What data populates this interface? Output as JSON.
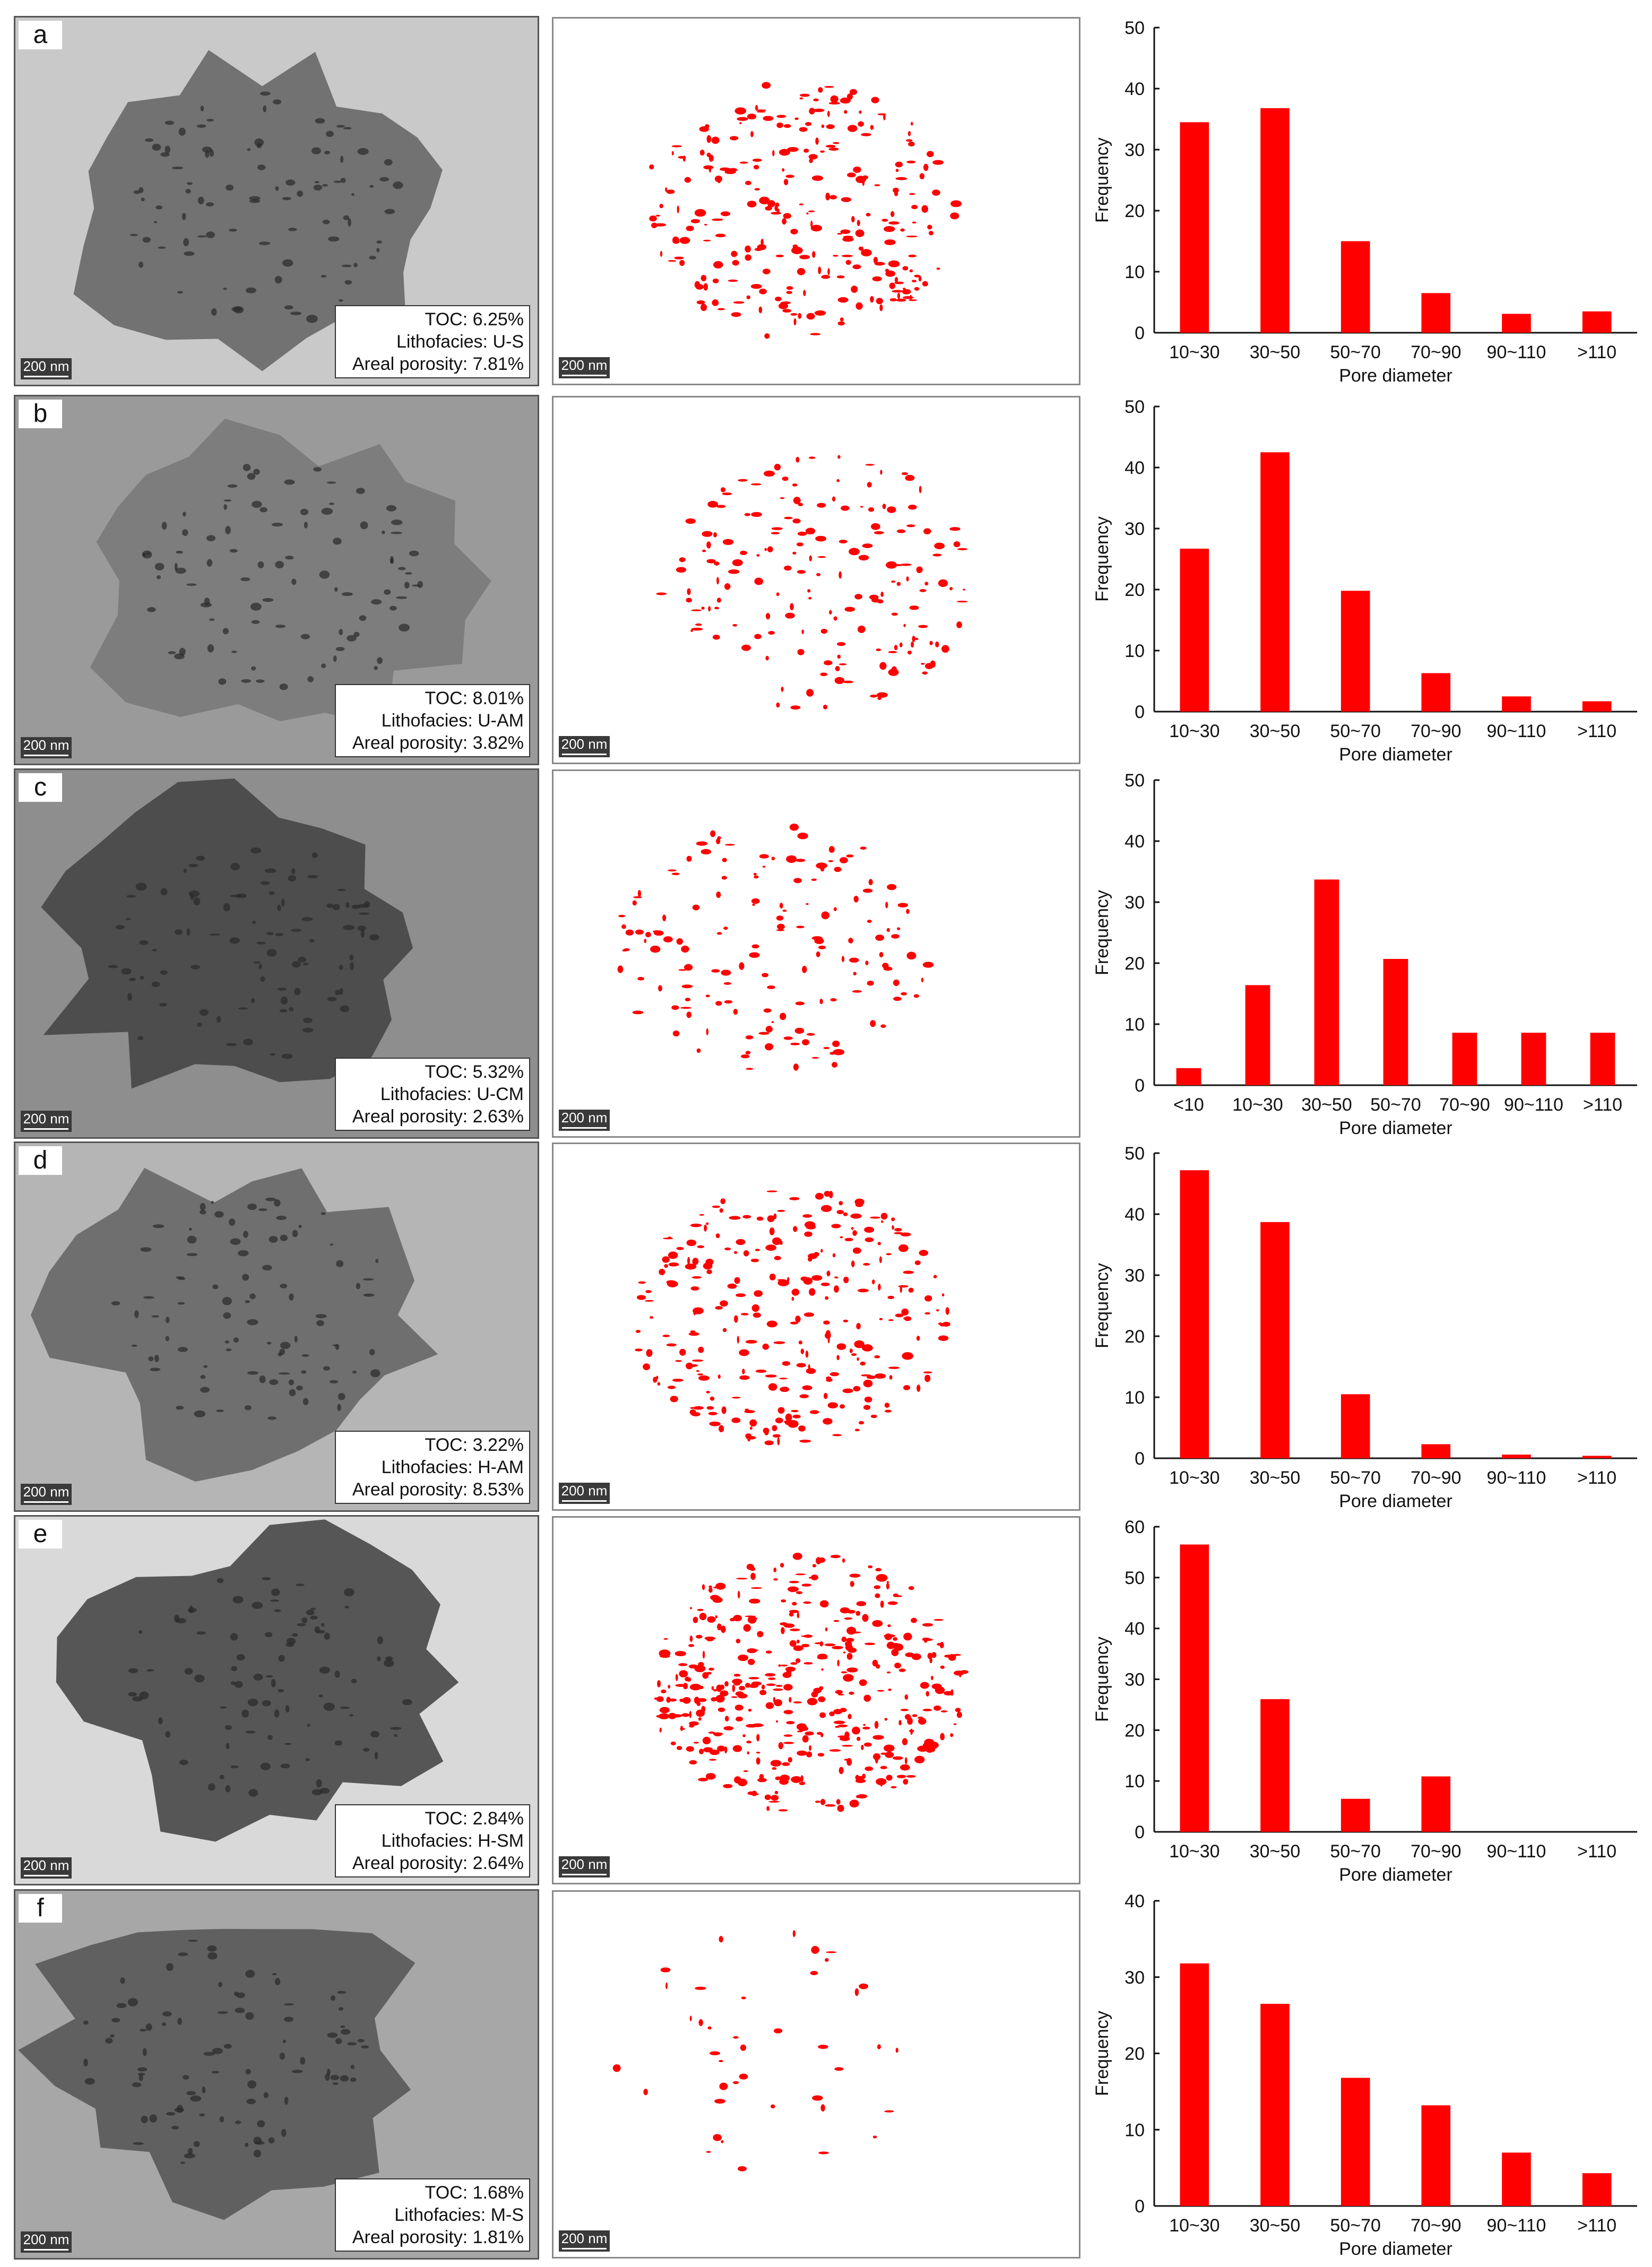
{
  "colors": {
    "bar": "#ff0000",
    "pore": "#ff0000",
    "axis": "#111111"
  },
  "panels": [
    {
      "label": "a",
      "scale_bar": "200 nm",
      "toc": "TOC: 6.25%",
      "lithofacies": "Lithofacies: U-S",
      "porosity": "Areal porosity: 7.81%",
      "chart_data": {
        "type": "bar",
        "categories": [
          "10~30",
          "30~50",
          "50~70",
          "70~90",
          "90~110",
          ">110"
        ],
        "values": [
          34.5,
          36.8,
          15.0,
          6.5,
          3.1,
          3.5
        ],
        "xlabel": "Pore diameter",
        "ylabel": "Frequency",
        "ylim": [
          0,
          50
        ],
        "yticks": [
          0,
          10,
          20,
          30,
          40,
          50
        ],
        "grid": false
      }
    },
    {
      "label": "b",
      "scale_bar": "200 nm",
      "toc": "TOC: 8.01%",
      "lithofacies": "Lithofacies: U-AM",
      "porosity": "Areal porosity: 3.82%",
      "chart_data": {
        "type": "bar",
        "categories": [
          "10~30",
          "30~50",
          "50~70",
          "70~90",
          "90~110",
          ">110"
        ],
        "values": [
          26.7,
          42.5,
          19.8,
          6.3,
          2.5,
          1.7
        ],
        "xlabel": "Pore diameter",
        "ylabel": "Frequency",
        "ylim": [
          0,
          50
        ],
        "yticks": [
          0,
          10,
          20,
          30,
          40,
          50
        ],
        "grid": false
      }
    },
    {
      "label": "c",
      "scale_bar": "200 nm",
      "toc": "TOC: 5.32%",
      "lithofacies": "Lithofacies: U-CM",
      "porosity": "Areal porosity: 2.63%",
      "chart_data": {
        "type": "bar",
        "categories": [
          "<10",
          "10~30",
          "30~50",
          "50~70",
          "70~90",
          "90~110",
          ">110"
        ],
        "values": [
          2.8,
          16.4,
          33.7,
          20.7,
          8.6,
          8.6,
          8.6
        ],
        "xlabel": "Pore diameter",
        "ylabel": "Frequency",
        "ylim": [
          0,
          50
        ],
        "yticks": [
          0,
          10,
          20,
          30,
          40,
          50
        ],
        "grid": false
      }
    },
    {
      "label": "d",
      "scale_bar": "200 nm",
      "toc": "TOC: 3.22%",
      "lithofacies": "Lithofacies: H-AM",
      "porosity": "Areal porosity: 8.53%",
      "chart_data": {
        "type": "bar",
        "categories": [
          "10~30",
          "30~50",
          "50~70",
          "70~90",
          "90~110",
          ">110"
        ],
        "values": [
          47.2,
          38.7,
          10.5,
          2.3,
          0.6,
          0.4
        ],
        "xlabel": "Pore diameter",
        "ylabel": "Frequency",
        "ylim": [
          0,
          50
        ],
        "yticks": [
          0,
          10,
          20,
          30,
          40,
          50
        ],
        "grid": false
      }
    },
    {
      "label": "e",
      "scale_bar": "200 nm",
      "toc": "TOC: 2.84%",
      "lithofacies": "Lithofacies: H-SM",
      "porosity": "Areal porosity: 2.64%",
      "chart_data": {
        "type": "bar",
        "categories": [
          "10~30",
          "30~50",
          "50~70",
          "70~90",
          "90~110",
          ">110"
        ],
        "values": [
          56.5,
          26.1,
          6.5,
          10.9,
          0,
          0
        ],
        "xlabel": "Pore diameter",
        "ylabel": "Frequency",
        "ylim": [
          0,
          60
        ],
        "yticks": [
          0,
          10,
          20,
          30,
          40,
          50,
          60
        ],
        "grid": false
      }
    },
    {
      "label": "f",
      "scale_bar": "200 nm",
      "toc": "TOC: 1.68%",
      "lithofacies": "Lithofacies: M-S",
      "porosity": "Areal porosity: 1.81%",
      "chart_data": {
        "type": "bar",
        "categories": [
          "10~30",
          "30~50",
          "50~70",
          "70~90",
          "90~110",
          ">110"
        ],
        "values": [
          31.8,
          26.5,
          16.8,
          13.2,
          7.0,
          4.3
        ],
        "xlabel": "Pore diameter",
        "ylabel": "Frequency",
        "ylim": [
          0,
          40
        ],
        "yticks": [
          0,
          10,
          20,
          30,
          40
        ],
        "grid": false
      }
    }
  ]
}
